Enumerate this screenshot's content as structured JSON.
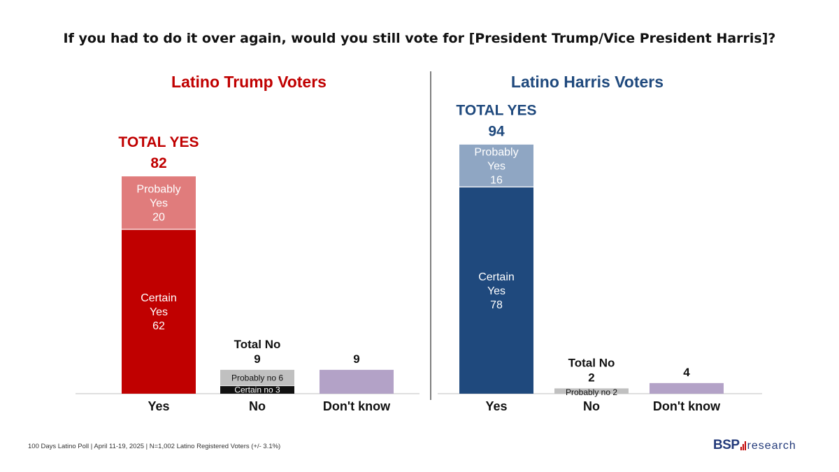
{
  "title": "If you had to do it over again, would you still vote for [President Trump/Vice President Harris]?",
  "footer": "100 Days Latino Poll | April 11-19, 2025 | N=1,002 Latino Registered Voters (+/- 3.1%)",
  "logo": {
    "main": "BSP",
    "sub": "research",
    "icon": "bar-chart-icon"
  },
  "colors": {
    "trump_title": "#c00000",
    "harris_title": "#1f497d",
    "trump_certain": "#c00000",
    "trump_probably": "#e07c7c",
    "harris_certain": "#1f497d",
    "harris_probably": "#8fa6c3",
    "no_probably": "#c0c0c0",
    "no_certain": "#111111",
    "dont_know": "#b3a2c7"
  },
  "chart_data": [
    {
      "type": "bar",
      "stacked": true,
      "title": "Latino Trump Voters",
      "categories": [
        "Yes",
        "No",
        "Don't know"
      ],
      "ylim": [
        0,
        100
      ],
      "series": [
        {
          "name": "Certain",
          "values": [
            62,
            3,
            null
          ]
        },
        {
          "name": "Probably",
          "values": [
            20,
            6,
            null
          ]
        },
        {
          "name": "Don't know",
          "values": [
            null,
            null,
            9
          ]
        }
      ],
      "segment_labels": {
        "yes_certain": [
          "Certain",
          "Yes",
          "62"
        ],
        "yes_probably": [
          "Probably",
          "Yes",
          "20"
        ],
        "no_probably": "Probably no 6",
        "no_certain": "Certain no 3"
      },
      "totals": {
        "yes": {
          "label": "TOTAL YES",
          "value": "82"
        },
        "no": {
          "label": "Total No",
          "value": "9"
        },
        "dont_know": {
          "value": "9"
        }
      }
    },
    {
      "type": "bar",
      "stacked": true,
      "title": "Latino Harris Voters",
      "categories": [
        "Yes",
        "No",
        "Don't know"
      ],
      "ylim": [
        0,
        100
      ],
      "series": [
        {
          "name": "Certain",
          "values": [
            78,
            0,
            null
          ]
        },
        {
          "name": "Probably",
          "values": [
            16,
            2,
            null
          ]
        },
        {
          "name": "Don't know",
          "values": [
            null,
            null,
            4
          ]
        }
      ],
      "segment_labels": {
        "yes_certain": [
          "Certain",
          "Yes",
          "78"
        ],
        "yes_probably": [
          "Probably",
          "Yes",
          "16"
        ],
        "no_probably": "Probably no 2"
      },
      "totals": {
        "yes": {
          "label": "TOTAL YES",
          "value": "94"
        },
        "no": {
          "label": "Total No",
          "value": "2"
        },
        "dont_know": {
          "value": "4"
        }
      }
    }
  ]
}
